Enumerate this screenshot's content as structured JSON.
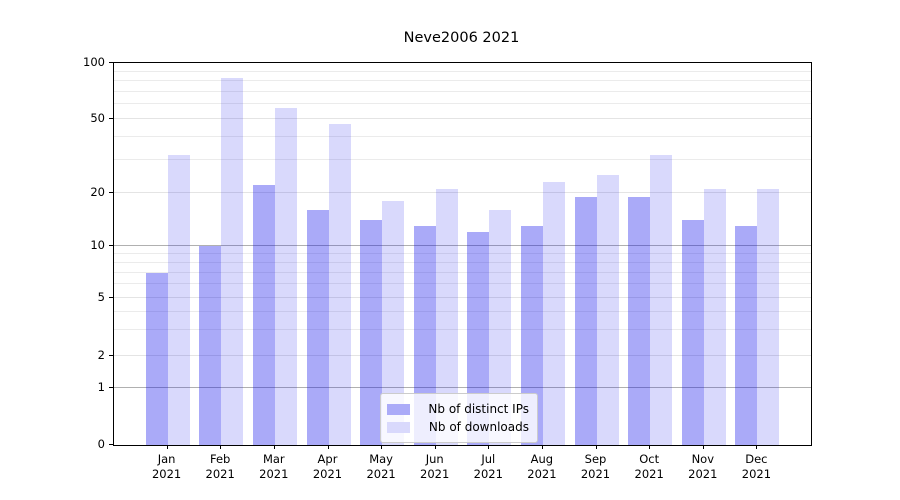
{
  "chart_data": {
    "type": "bar",
    "title": "Neve2006 2021",
    "categories": [
      "Jan",
      "Feb",
      "Mar",
      "Apr",
      "May",
      "Jun",
      "Jul",
      "Aug",
      "Sep",
      "Oct",
      "Nov",
      "Dec"
    ],
    "year": "2021",
    "series": [
      {
        "name": "Nb of distinct IPs",
        "color": "#ababf8",
        "values": [
          7,
          10,
          22,
          16,
          14,
          13,
          12,
          13,
          19,
          19,
          14,
          13
        ]
      },
      {
        "name": "Nb of downloads",
        "color": "#d9d9fc",
        "values": [
          32,
          83,
          57,
          47,
          18,
          21,
          16,
          23,
          25,
          32,
          21,
          21
        ]
      }
    ],
    "yscale": "symlog",
    "ylim": [
      0,
      100
    ],
    "y_ticks": [
      0,
      1,
      2,
      5,
      10,
      20,
      50,
      100
    ],
    "grid": true,
    "legend_position": "lower center"
  }
}
